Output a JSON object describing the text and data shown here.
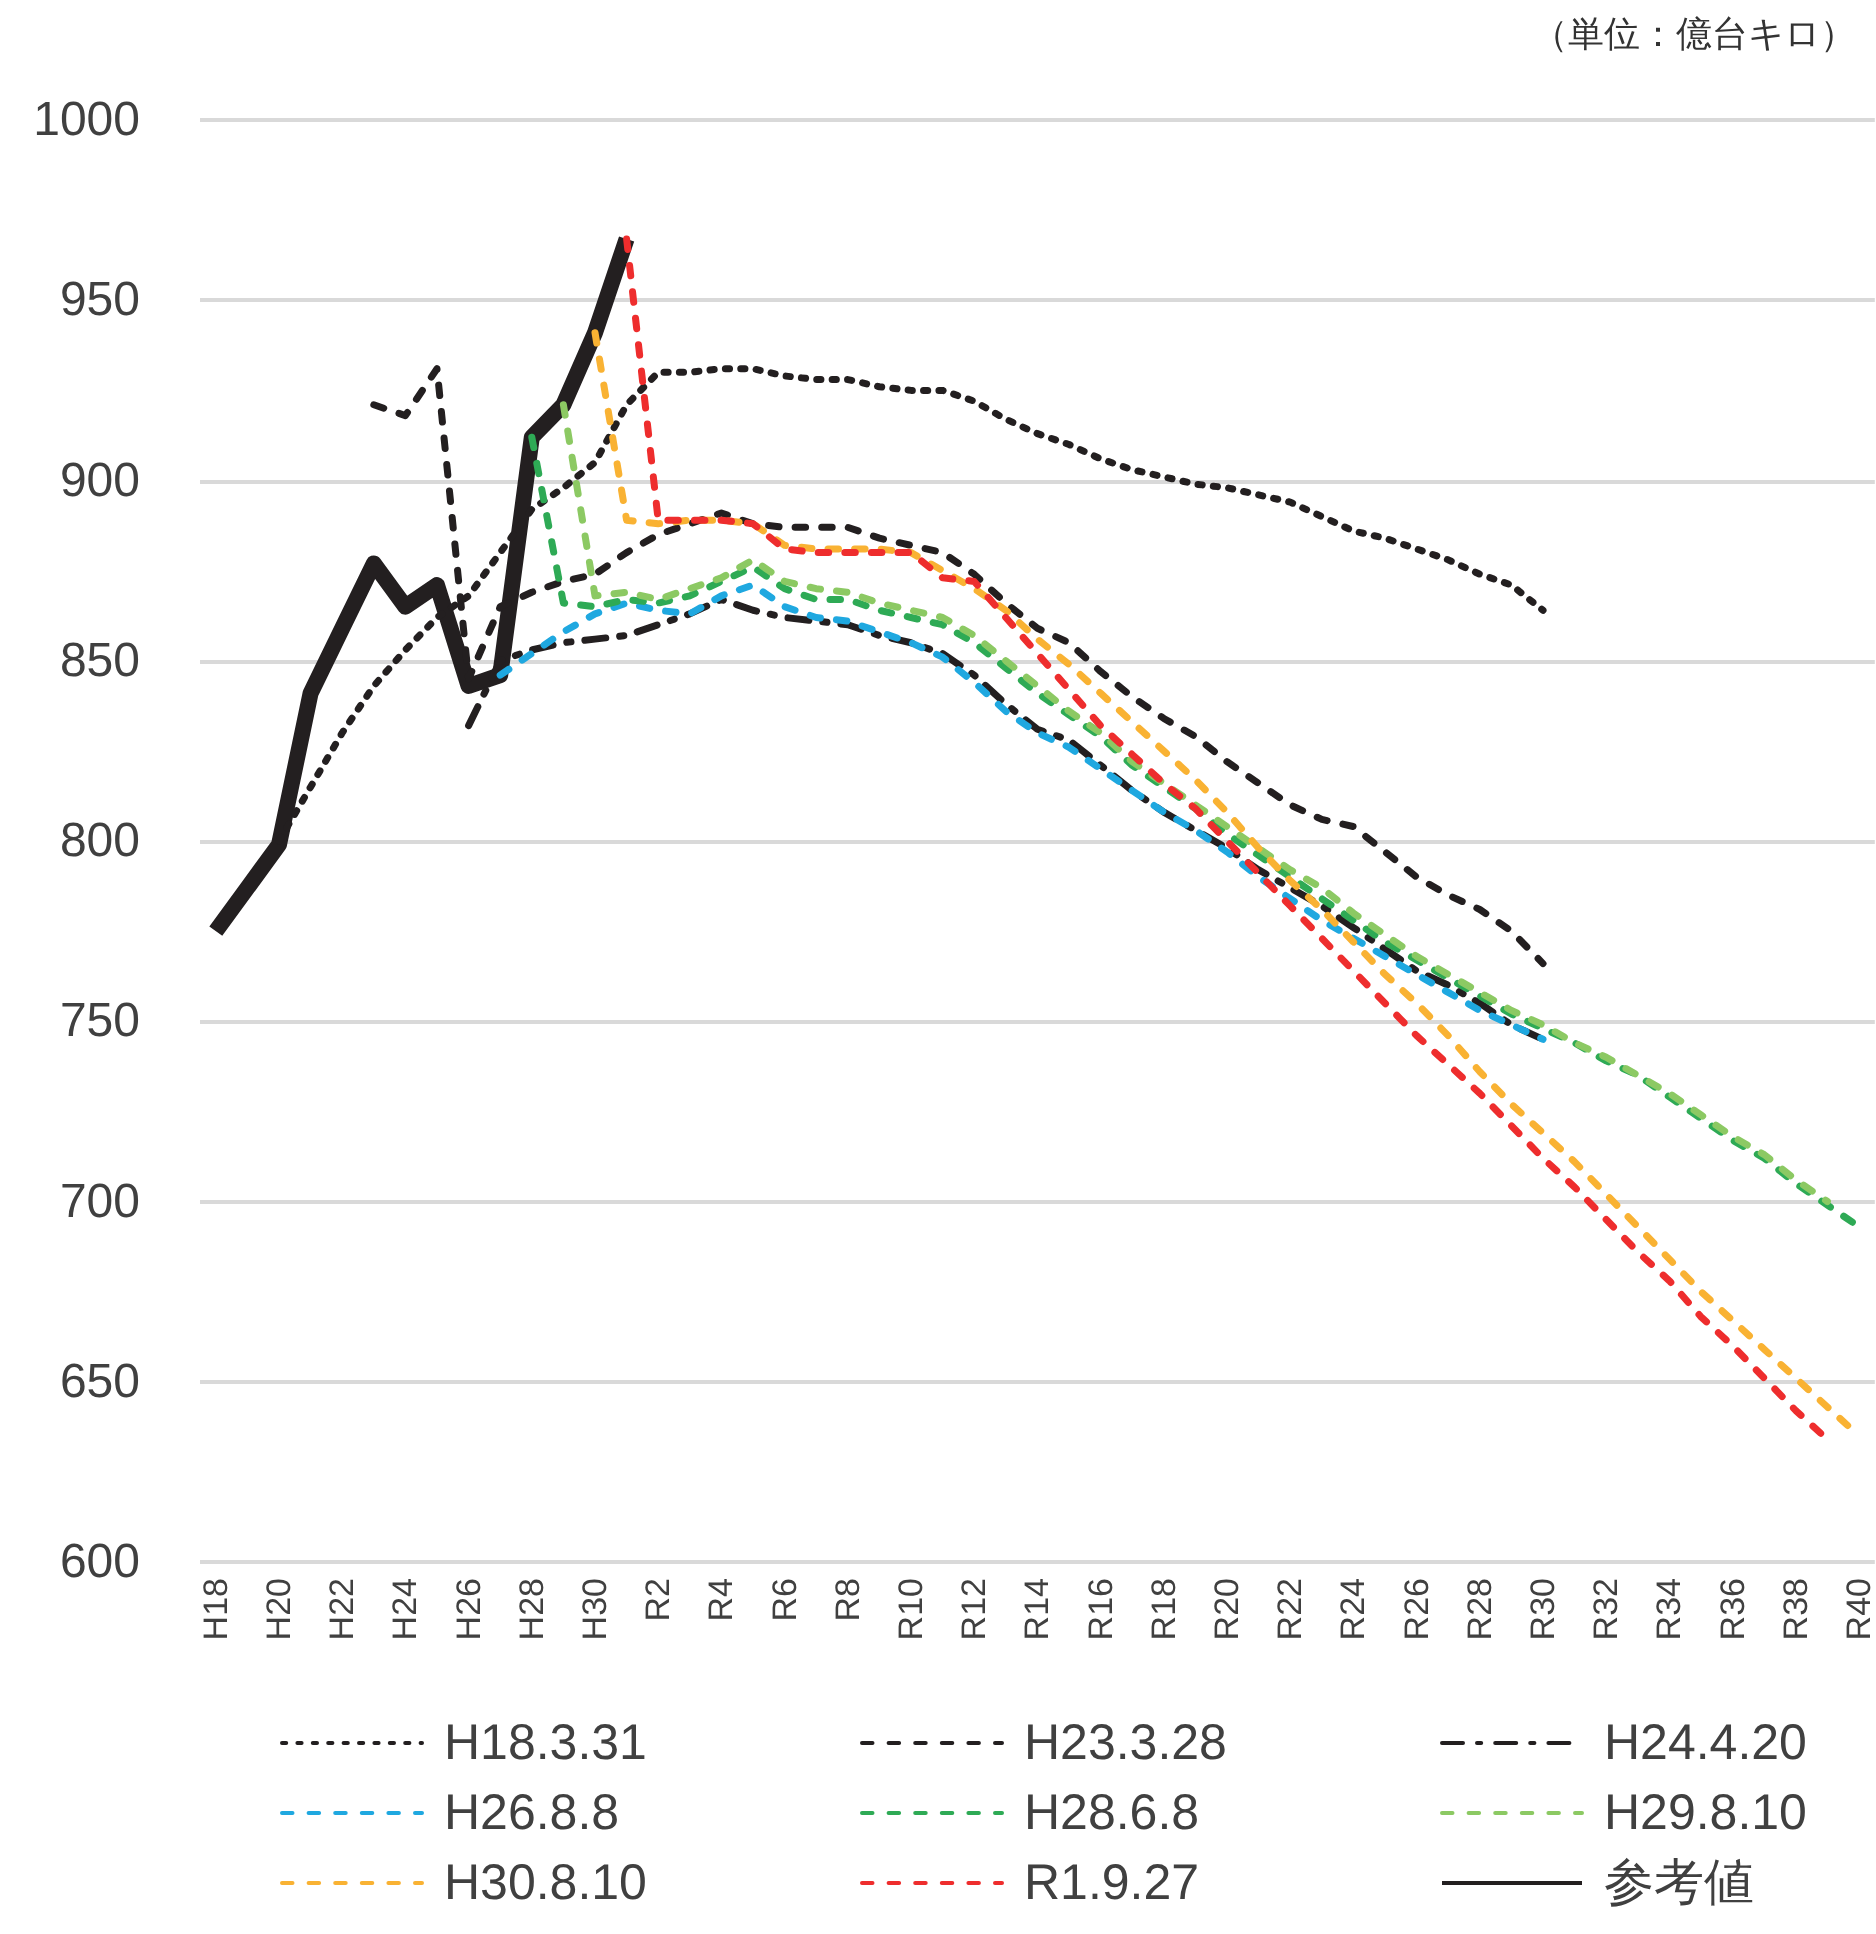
{
  "chart_data": {
    "type": "line",
    "annotations": [
      "（単位：億台キロ）"
    ],
    "categories": [
      "H18",
      null,
      "H20",
      null,
      "H22",
      null,
      "H24",
      null,
      "H26",
      null,
      "H28",
      null,
      "H30",
      null,
      "R2",
      null,
      "R4",
      null,
      "R6",
      null,
      "R8",
      null,
      "R10",
      null,
      "R12",
      null,
      "R14",
      null,
      "R16",
      null,
      "R18",
      null,
      "R20",
      null,
      "R22",
      null,
      "R24",
      null,
      "R26",
      null,
      "R28",
      null,
      "R30",
      null,
      "R32",
      null,
      "R34",
      null,
      "R36",
      null,
      "R38",
      null,
      "R40"
    ],
    "ylim": [
      600,
      1000
    ],
    "yticks": [
      600,
      650,
      700,
      750,
      800,
      850,
      900,
      950,
      {
        "value": 1000,
        "label": "1000"
      }
    ],
    "grid": "y",
    "legend": "bottom",
    "marker": "none",
    "series": [
      {
        "name": "H18.3.31",
        "color": "#231f20",
        "line_style": "dotted",
        "values": [
          null,
          null,
          800,
          815,
          830,
          843,
          853,
          862,
          868,
          880,
          892,
          898,
          905,
          921,
          930,
          930,
          931,
          931,
          929,
          928,
          928,
          926,
          925,
          925,
          922,
          917,
          913,
          910,
          906,
          903,
          901,
          899,
          898,
          896,
          894,
          890,
          886,
          884,
          881,
          878,
          874,
          871,
          864,
          null,
          null,
          null,
          null,
          null,
          null,
          null,
          null,
          null,
          null
        ]
      },
      {
        "name": "H23.3.28",
        "color": "#231f20",
        "line_style": "dashed",
        "values": [
          null,
          null,
          null,
          null,
          null,
          921,
          918,
          931,
          845,
          865,
          869,
          872,
          874,
          880,
          885,
          888,
          891,
          888,
          887,
          887,
          887,
          884,
          882,
          880,
          874,
          866,
          859,
          855,
          847,
          840,
          834,
          829,
          822,
          816,
          810,
          806,
          804,
          797,
          790,
          785,
          781,
          775,
          766,
          null,
          null,
          null,
          null,
          null,
          null,
          null,
          null,
          null,
          null
        ]
      },
      {
        "name": "H24.4.20",
        "color": "#231f20",
        "line_style": "dashdot",
        "values": [
          null,
          null,
          null,
          null,
          null,
          null,
          null,
          null,
          832,
          850,
          853,
          855,
          856,
          857,
          860,
          863,
          867,
          864,
          862,
          861,
          860,
          857,
          855,
          852,
          846,
          838,
          831,
          828,
          821,
          814,
          808,
          803,
          798,
          792,
          787,
          782,
          776,
          770,
          764,
          760,
          755,
          749,
          745,
          null,
          null,
          null,
          null,
          null,
          null,
          null,
          null,
          null,
          null
        ]
      },
      {
        "name": "H26.8.8",
        "color": "#1fa8e0",
        "line_style": "dashed",
        "values": [
          null,
          null,
          null,
          null,
          null,
          null,
          null,
          null,
          null,
          846,
          852,
          858,
          863,
          866,
          864,
          863,
          868,
          871,
          865,
          862,
          861,
          858,
          855,
          851,
          844,
          836,
          830,
          826,
          820,
          814,
          808,
          803,
          797,
          790,
          784,
          778,
          773,
          768,
          763,
          758,
          753,
          749,
          745,
          null,
          null,
          null,
          null,
          null,
          null,
          null,
          null,
          null,
          null
        ]
      },
      {
        "name": "H28.6.8",
        "color": "#2eaa55",
        "line_style": "dashed",
        "values": [
          null,
          null,
          null,
          null,
          null,
          null,
          null,
          null,
          null,
          null,
          912,
          866,
          865,
          867,
          866,
          868,
          872,
          876,
          870,
          867,
          867,
          864,
          862,
          860,
          855,
          848,
          841,
          835,
          829,
          821,
          815,
          809,
          802,
          796,
          790,
          784,
          778,
          772,
          767,
          762,
          757,
          752,
          748,
          744,
          739,
          735,
          729,
          723,
          717,
          712,
          705,
          699,
          693
        ]
      },
      {
        "name": "H29.8.10",
        "color": "#8cc963",
        "line_style": "dashed",
        "values": [
          null,
          null,
          null,
          null,
          null,
          null,
          null,
          null,
          null,
          null,
          null,
          921,
          868,
          869,
          867,
          870,
          873,
          878,
          872,
          870,
          869,
          866,
          864,
          862,
          857,
          850,
          843,
          836,
          830,
          822,
          816,
          810,
          804,
          798,
          792,
          787,
          780,
          774,
          768,
          763,
          758,
          753,
          749,
          744,
          740,
          735,
          730,
          724,
          718,
          713,
          706,
          700,
          null
        ]
      },
      {
        "name": "H30.8.10",
        "color": "#f9b233",
        "line_style": "dashed",
        "values": [
          null,
          null,
          null,
          null,
          null,
          null,
          null,
          null,
          null,
          null,
          null,
          null,
          941,
          889,
          888,
          889,
          889,
          888,
          882,
          881,
          881,
          881,
          880,
          875,
          870,
          864,
          856,
          849,
          841,
          833,
          825,
          817,
          808,
          798,
          789,
          781,
          772,
          763,
          755,
          746,
          736,
          727,
          719,
          711,
          702,
          693,
          684,
          675,
          667,
          659,
          651,
          643,
          635
        ]
      },
      {
        "name": "R1.9.27",
        "color": "#ee2d2d",
        "line_style": "dashed",
        "values": [
          null,
          null,
          null,
          null,
          null,
          null,
          null,
          null,
          null,
          null,
          null,
          null,
          null,
          967,
          889,
          889,
          889,
          888,
          881,
          880,
          880,
          880,
          880,
          873,
          872,
          862,
          852,
          842,
          832,
          824,
          816,
          809,
          800,
          791,
          782,
          773,
          764,
          755,
          746,
          738,
          730,
          721,
          712,
          704,
          695,
          686,
          678,
          668,
          660,
          651,
          642,
          634,
          null
        ]
      },
      {
        "name": "参考値",
        "color": "#231f20",
        "line_style": "solid",
        "values": [
          775,
          787,
          799,
          841,
          859,
          877,
          865,
          871,
          843,
          846,
          912,
          921,
          941,
          967,
          null,
          null,
          null,
          null,
          null,
          null,
          null,
          null,
          null,
          null,
          null,
          null,
          null,
          null,
          null,
          null,
          null,
          null,
          null,
          null,
          null,
          null,
          null,
          null,
          null,
          null,
          null,
          null,
          null,
          null,
          null,
          null,
          null,
          null,
          null,
          null,
          null,
          null,
          null
        ]
      }
    ]
  }
}
